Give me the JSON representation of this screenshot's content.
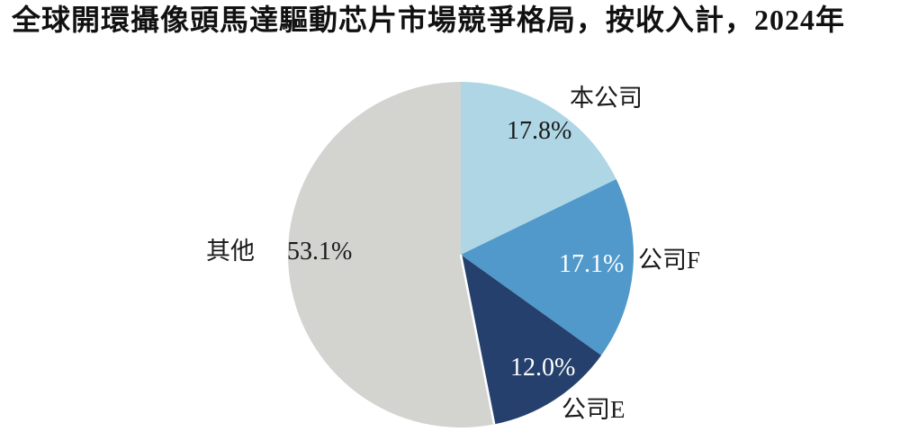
{
  "title": "全球開環攝像頭馬達驅動芯片市場競爭格局，按收入計，2024年",
  "chart_data": {
    "type": "pie",
    "title": "全球開環攝像頭馬達驅動芯片市場競爭格局，按收入計，2024年",
    "unit": "%",
    "start_angle_deg": 0,
    "direction": "clockwise",
    "legend_position": "none",
    "separator_after_slice_index": 2,
    "separator_color": "#ffffff",
    "background_color": "#ffffff",
    "slices": [
      {
        "label": "本公司",
        "value": 17.8,
        "display": "17.8%",
        "color": "#aed6e5",
        "value_label_color": "#1a1a1a"
      },
      {
        "label": "公司F",
        "value": 17.1,
        "display": "17.1%",
        "color": "#5099ca",
        "value_label_color": "#ffffff"
      },
      {
        "label": "公司E",
        "value": 12.0,
        "display": "12.0%",
        "color": "#25406c",
        "value_label_color": "#ffffff"
      },
      {
        "label": "其他",
        "value": 53.1,
        "display": "53.1%",
        "color": "#d3d3d0",
        "value_label_color": "#1a1a1a"
      }
    ]
  }
}
